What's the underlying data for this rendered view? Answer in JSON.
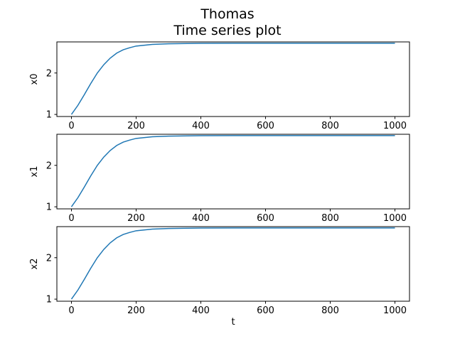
{
  "figure": {
    "title_line1": "Thomas",
    "title_line2": "Time series plot"
  },
  "colors": {
    "series": "#1f77b4",
    "background": "#ffffff",
    "axes": "#000000"
  },
  "chart_data": [
    {
      "type": "line",
      "ylabel": "x0",
      "xlabel": "",
      "xlim": [
        -45,
        1045
      ],
      "ylim": [
        0.95,
        2.75
      ],
      "xticks": [
        0,
        200,
        400,
        600,
        800,
        1000
      ],
      "yticks": [
        1,
        2
      ],
      "grid": false,
      "series": [
        {
          "x": [
            0,
            20,
            40,
            60,
            80,
            100,
            120,
            140,
            160,
            180,
            200,
            250,
            300,
            400,
            500,
            600,
            700,
            800,
            900,
            1000
          ],
          "values": [
            1.0,
            1.22,
            1.48,
            1.75,
            2.0,
            2.2,
            2.36,
            2.48,
            2.56,
            2.61,
            2.65,
            2.69,
            2.705,
            2.715,
            2.718,
            2.718,
            2.718,
            2.718,
            2.718,
            2.718
          ]
        }
      ]
    },
    {
      "type": "line",
      "ylabel": "x1",
      "xlabel": "",
      "xlim": [
        -45,
        1045
      ],
      "ylim": [
        0.95,
        2.75
      ],
      "xticks": [
        0,
        200,
        400,
        600,
        800,
        1000
      ],
      "yticks": [
        1,
        2
      ],
      "grid": false,
      "series": [
        {
          "x": [
            0,
            20,
            40,
            60,
            80,
            100,
            120,
            140,
            160,
            180,
            200,
            250,
            300,
            400,
            500,
            600,
            700,
            800,
            900,
            1000
          ],
          "values": [
            1.0,
            1.22,
            1.48,
            1.75,
            2.0,
            2.2,
            2.36,
            2.48,
            2.56,
            2.61,
            2.65,
            2.69,
            2.705,
            2.715,
            2.718,
            2.718,
            2.718,
            2.718,
            2.718,
            2.718
          ]
        }
      ]
    },
    {
      "type": "line",
      "ylabel": "x2",
      "xlabel": "t",
      "xlim": [
        -45,
        1045
      ],
      "ylim": [
        0.95,
        2.75
      ],
      "xticks": [
        0,
        200,
        400,
        600,
        800,
        1000
      ],
      "yticks": [
        1,
        2
      ],
      "grid": false,
      "series": [
        {
          "x": [
            0,
            20,
            40,
            60,
            80,
            100,
            120,
            140,
            160,
            180,
            200,
            250,
            300,
            400,
            500,
            600,
            700,
            800,
            900,
            1000
          ],
          "values": [
            1.0,
            1.22,
            1.48,
            1.75,
            2.0,
            2.2,
            2.36,
            2.48,
            2.56,
            2.61,
            2.65,
            2.69,
            2.705,
            2.715,
            2.718,
            2.718,
            2.718,
            2.718,
            2.718,
            2.718
          ]
        }
      ]
    }
  ]
}
